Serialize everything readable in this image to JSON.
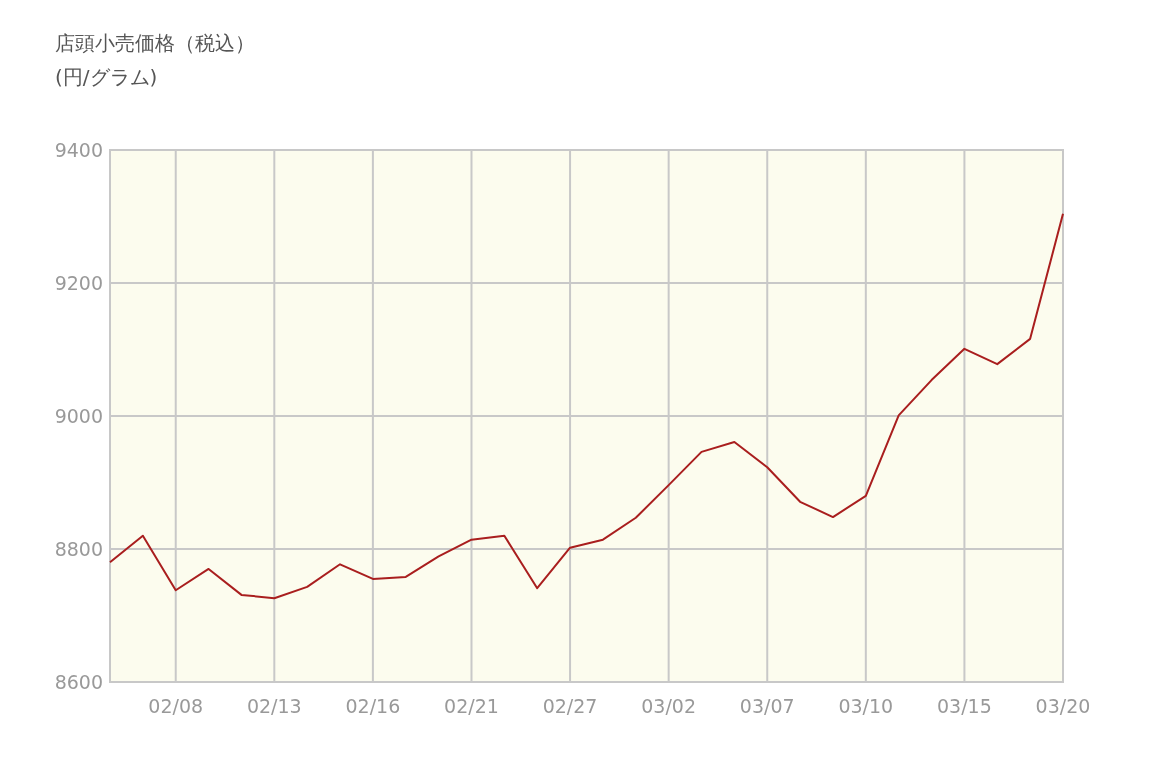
{
  "chart_data": {
    "type": "line",
    "title": "店頭小売価格（税込）",
    "subtitle": "(円/グラム)",
    "categories": [
      null,
      null,
      "02/08",
      null,
      null,
      "02/13",
      null,
      null,
      "02/16",
      null,
      null,
      "02/21",
      null,
      null,
      "02/27",
      null,
      null,
      "03/02",
      null,
      null,
      "03/07",
      null,
      null,
      "03/10",
      null,
      null,
      "03/15",
      null,
      null,
      "03/20"
    ],
    "values": [
      8780,
      8820,
      8738,
      8770,
      8731,
      8726,
      8743,
      8777,
      8755,
      8758,
      8789,
      8814,
      8820,
      8741,
      8802,
      8814,
      8847,
      8896,
      8946,
      8961,
      8923,
      8871,
      8848,
      8880,
      9001,
      9054,
      9101,
      9078,
      9116,
      9304
    ],
    "color": "#a91e1e",
    "ylim": [
      8600,
      9400
    ],
    "yticks": [
      8600,
      8800,
      9000,
      9200,
      9400
    ],
    "grid": true,
    "marker": "none",
    "line_style": "solid"
  }
}
